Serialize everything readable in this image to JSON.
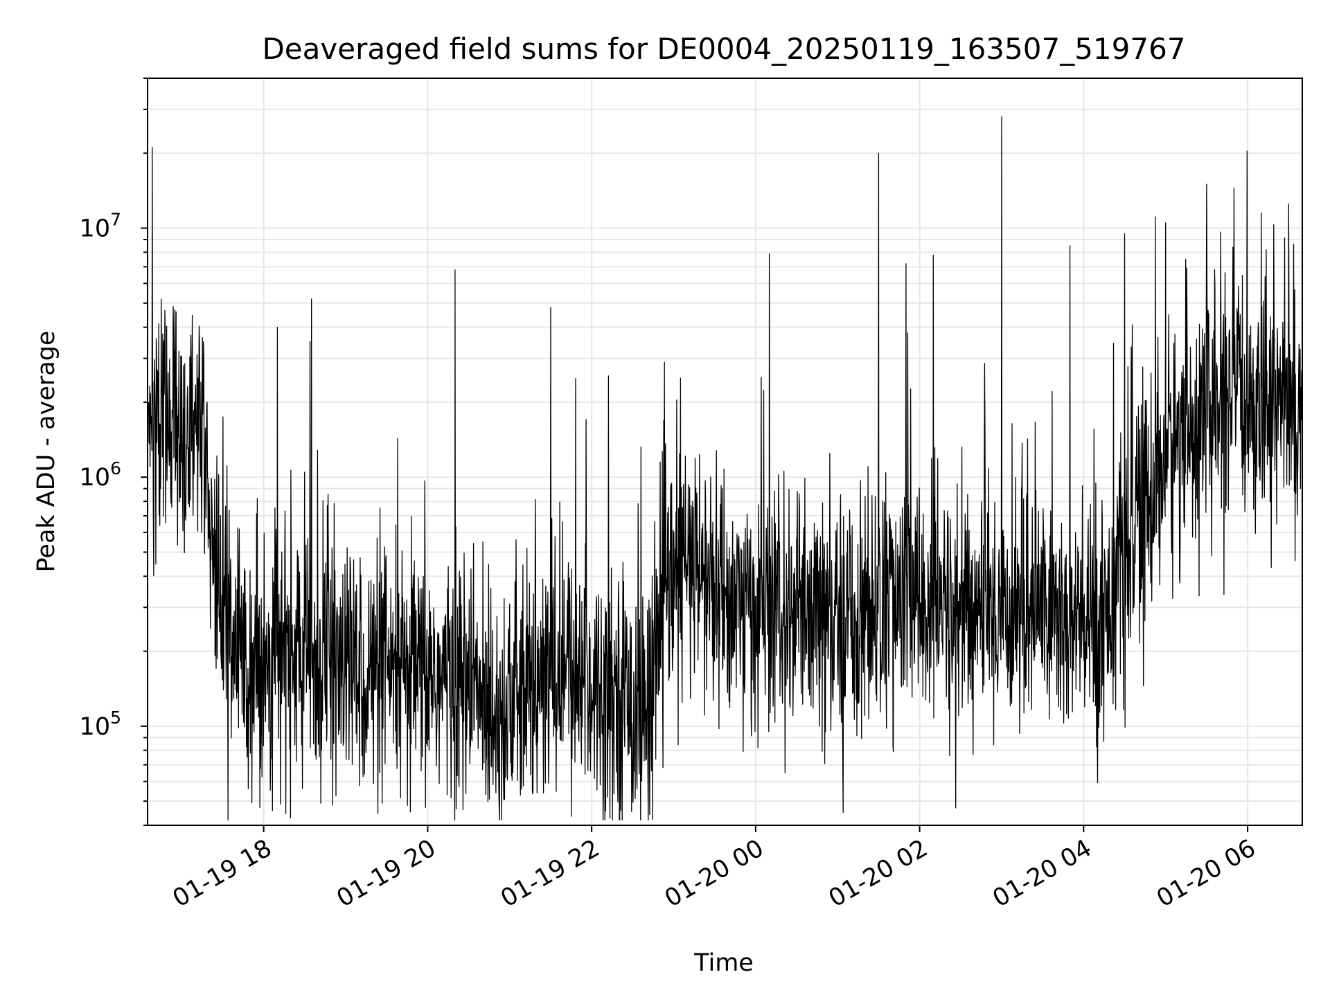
{
  "chart_data": {
    "type": "line",
    "title": "Deaveraged field sums for DE0004_20250119_163507_519767",
    "xlabel": "Time",
    "ylabel": "Peak ADU - average",
    "yscale": "log",
    "ylim": [
      40000,
      40000000
    ],
    "xlim": [
      "2025-01-19 16:35",
      "2025-01-20 06:40"
    ],
    "grid": true,
    "line_color": "#000000",
    "grid_color": "#e6e6e6",
    "x_ticks": [
      "01-19 18",
      "01-19 20",
      "01-19 22",
      "01-20 00",
      "01-20 02",
      "01-20 04",
      "01-20 06"
    ],
    "y_ticks": [
      {
        "base": "10",
        "exp": "5"
      },
      {
        "base": "10",
        "exp": "6"
      },
      {
        "base": "10",
        "exp": "7"
      }
    ],
    "series": [
      {
        "x": [
          "2025-01-19 16:35",
          "2025-01-19 16:45",
          "2025-01-19 17:00",
          "2025-01-19 17:15",
          "2025-01-19 17:25",
          "2025-01-19 17:40",
          "2025-01-19 18:00",
          "2025-01-19 18:20",
          "2025-01-19 18:40",
          "2025-01-19 19:00",
          "2025-01-19 19:20",
          "2025-01-19 19:40",
          "2025-01-19 20:00",
          "2025-01-19 20:20",
          "2025-01-19 20:40",
          "2025-01-19 21:00",
          "2025-01-19 21:20",
          "2025-01-19 21:40",
          "2025-01-19 22:00",
          "2025-01-19 22:20",
          "2025-01-19 22:40",
          "2025-01-19 22:50",
          "2025-01-19 23:10",
          "2025-01-19 23:30",
          "2025-01-19 23:50",
          "2025-01-20 00:10",
          "2025-01-20 00:30",
          "2025-01-20 00:50",
          "2025-01-20 01:10",
          "2025-01-20 01:30",
          "2025-01-20 01:50",
          "2025-01-20 02:10",
          "2025-01-20 02:30",
          "2025-01-20 02:50",
          "2025-01-20 03:10",
          "2025-01-20 03:30",
          "2025-01-20 03:50",
          "2025-01-20 04:10",
          "2025-01-20 04:30",
          "2025-01-20 04:50",
          "2025-01-20 05:10",
          "2025-01-20 05:30",
          "2025-01-20 05:50",
          "2025-01-20 06:10",
          "2025-01-20 06:30",
          "2025-01-20 06:40"
        ],
        "y": [
          1500000,
          1800000,
          1600000,
          1200000,
          400000,
          200000,
          180000,
          200000,
          180000,
          170000,
          160000,
          150000,
          160000,
          150000,
          130000,
          120000,
          140000,
          170000,
          150000,
          140000,
          110000,
          300000,
          450000,
          350000,
          300000,
          280000,
          260000,
          250000,
          270000,
          300000,
          320000,
          300000,
          280000,
          290000,
          300000,
          310000,
          250000,
          250000,
          450000,
          900000,
          1500000,
          1800000,
          2000000,
          2200000,
          2000000,
          1800000
        ],
        "noise_sigma": 0.5,
        "spikes": [
          {
            "x": "2025-01-19 16:55",
            "y": 4700000
          },
          {
            "x": "2025-01-19 18:10",
            "y": 4000000
          },
          {
            "x": "2025-01-19 18:35",
            "y": 5200000
          },
          {
            "x": "2025-01-19 20:20",
            "y": 6800000
          },
          {
            "x": "2025-01-19 21:30",
            "y": 4800000
          },
          {
            "x": "2025-01-19 23:05",
            "y": 2500000
          },
          {
            "x": "2025-01-20 00:10",
            "y": 7900000
          },
          {
            "x": "2025-01-20 01:30",
            "y": 20000000
          },
          {
            "x": "2025-01-20 01:50",
            "y": 7200000
          },
          {
            "x": "2025-01-20 02:10",
            "y": 7800000
          },
          {
            "x": "2025-01-20 03:00",
            "y": 28000000
          },
          {
            "x": "2025-01-20 03:50",
            "y": 8500000
          },
          {
            "x": "2025-01-20 04:30",
            "y": 9500000
          },
          {
            "x": "2025-01-20 05:00",
            "y": 10500000
          },
          {
            "x": "2025-01-20 05:30",
            "y": 15000000
          },
          {
            "x": "2025-01-20 05:50",
            "y": 14500000
          },
          {
            "x": "2025-01-20 06:10",
            "y": 11500000
          },
          {
            "x": "2025-01-20 06:30",
            "y": 12500000
          }
        ]
      }
    ]
  }
}
